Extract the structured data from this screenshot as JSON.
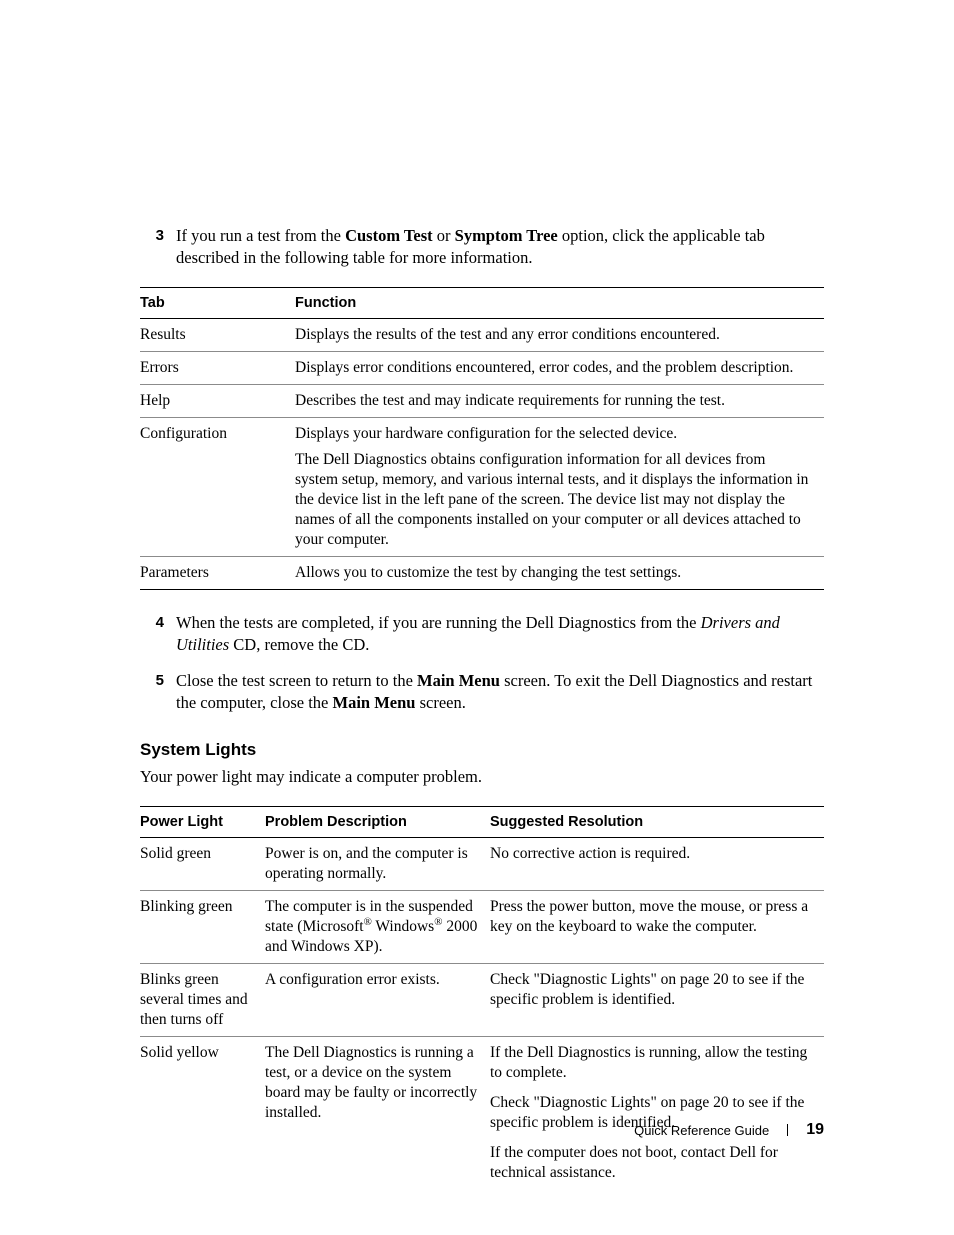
{
  "steps_a": [
    {
      "n": "3",
      "html": "If you run a test from the <span class=\"bold\">Custom Test</span> or <span class=\"bold\">Symptom Tree</span> option, click the applicable tab described in the following table for more information."
    }
  ],
  "table1": {
    "headers": [
      "Tab",
      "Function"
    ],
    "rows": [
      {
        "tab": "Results",
        "fn": "Displays the results of the test and any error conditions encountered."
      },
      {
        "tab": "Errors",
        "fn": "Displays error conditions encountered, error codes, and the problem description."
      },
      {
        "tab": "Help",
        "fn": "Describes the test and may indicate requirements for running the test."
      },
      {
        "tab": "Configuration",
        "fn": "Displays your hardware configuration for the selected device.",
        "fn2": "The Dell Diagnostics obtains configuration information for all devices from system setup, memory, and various internal tests, and it displays the information in the device list in the left pane of the screen. The device list may not display the names of all the components installed on your computer or all devices attached to your computer."
      },
      {
        "tab": "Parameters",
        "fn": "Allows you to customize the test by changing the test settings."
      }
    ]
  },
  "steps_b": [
    {
      "n": "4",
      "html": "When the tests are completed, if you are running the Dell Diagnostics from the <span class=\"ital\">Drivers and Utilities</span> CD, remove the CD."
    },
    {
      "n": "5",
      "html": "Close the test screen to return to the <span class=\"bold\">Main Menu</span> screen. To exit the Dell Diagnostics and restart the computer, close the <span class=\"bold\">Main Menu</span> screen."
    }
  ],
  "heading": "System Lights",
  "lead": "Your power light may indicate a computer problem.",
  "table2": {
    "headers": [
      "Power Light",
      "Problem Description",
      "Suggested Resolution"
    ],
    "rows": [
      {
        "pl": "Solid green",
        "pd": "Power is on, and the computer is operating normally.",
        "sr": [
          "No corrective action is required."
        ]
      },
      {
        "pl": "Blinking green",
        "pd_html": "The computer is in the suspended state (Microsoft<sup>®</sup> Windows<sup>®</sup> 2000 and Windows XP).",
        "sr": [
          "Press the power button, move the mouse, or press a key on the keyboard to wake the computer."
        ]
      },
      {
        "pl": "Blinks green several times and then turns off",
        "pd": "A configuration error exists.",
        "sr": [
          "Check \"Diagnostic Lights\" on page 20 to see if the specific problem is identified."
        ]
      },
      {
        "pl": "Solid yellow",
        "pd": "The Dell Diagnostics is running a test, or a device on the system board may be faulty or incorrectly installed.",
        "sr": [
          "If the Dell Diagnostics is running, allow the testing to complete.",
          "Check \"Diagnostic Lights\" on page 20 to see if the specific problem is identified.",
          "If the computer does not boot, contact Dell for technical assistance."
        ],
        "last_no_border": true
      }
    ]
  },
  "footer": {
    "title": "Quick Reference Guide",
    "page": "19"
  }
}
